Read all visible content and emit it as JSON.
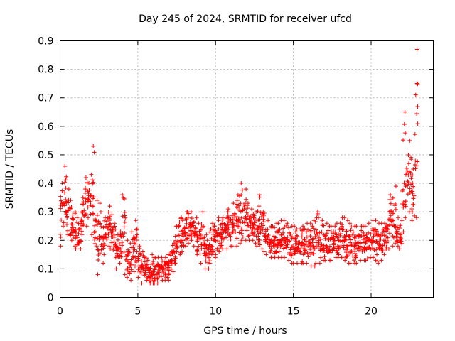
{
  "chart_data": {
    "type": "scatter",
    "title": "Day 245 of 2024, SRMTID for receiver ufcd",
    "xlabel": "GPS time / hours",
    "ylabel": "SRMTID / TECUs",
    "xlim": [
      0,
      24
    ],
    "ylim": [
      0,
      0.9
    ],
    "xticks": [
      0,
      5,
      10,
      15,
      20
    ],
    "xtick_labels": [
      "0",
      "5",
      "10",
      "15",
      "20"
    ],
    "yticks": [
      0,
      0.1,
      0.2,
      0.3,
      0.4,
      0.5,
      0.6,
      0.7,
      0.8,
      0.9
    ],
    "ytick_labels": [
      "0",
      "0.1",
      "0.2",
      "0.3",
      "0.4",
      "0.5",
      "0.6",
      "0.7",
      "0.8",
      "0.9"
    ],
    "grid": true,
    "marker": "+",
    "color": "#ff0000",
    "series": [
      {
        "name": "SRMTID",
        "x": [
          0.0,
          0.2,
          0.4,
          0.6,
          0.8,
          1.0,
          1.2,
          1.4,
          1.6,
          1.8,
          2.0,
          2.2,
          2.4,
          2.6,
          2.8,
          3.0,
          3.2,
          3.4,
          3.6,
          3.8,
          4.0,
          4.2,
          4.4,
          4.6,
          4.8,
          5.0,
          5.2,
          5.4,
          5.6,
          5.8,
          6.0,
          6.2,
          6.4,
          6.6,
          6.8,
          7.0,
          7.2,
          7.4,
          7.6,
          7.8,
          8.0,
          8.2,
          8.4,
          8.6,
          8.8,
          9.0,
          9.2,
          9.4,
          9.6,
          9.8,
          10.0,
          10.2,
          10.4,
          10.6,
          10.8,
          11.0,
          11.2,
          11.4,
          11.6,
          11.8,
          12.0,
          12.2,
          12.4,
          12.6,
          12.8,
          13.0,
          13.2,
          13.4,
          13.6,
          13.8,
          14.0,
          14.2,
          14.4,
          14.6,
          14.8,
          15.0,
          15.2,
          15.4,
          15.6,
          15.8,
          16.0,
          16.2,
          16.4,
          16.6,
          16.8,
          17.0,
          17.2,
          17.4,
          17.6,
          17.8,
          18.0,
          18.2,
          18.4,
          18.6,
          18.8,
          19.0,
          19.2,
          19.4,
          19.6,
          19.8,
          20.0,
          20.2,
          20.4,
          20.6,
          20.8,
          21.0,
          21.2,
          21.4,
          21.6,
          21.8,
          22.0,
          22.2,
          22.4,
          22.6,
          22.8
        ],
        "y_low": [
          0.18,
          0.25,
          0.22,
          0.2,
          0.18,
          0.17,
          0.17,
          0.22,
          0.25,
          0.28,
          0.22,
          0.18,
          0.08,
          0.12,
          0.15,
          0.18,
          0.17,
          0.14,
          0.1,
          0.12,
          0.08,
          0.07,
          0.06,
          0.09,
          0.11,
          0.07,
          0.05,
          0.06,
          0.05,
          0.05,
          0.05,
          0.05,
          0.06,
          0.06,
          0.06,
          0.08,
          0.09,
          0.12,
          0.15,
          0.16,
          0.18,
          0.19,
          0.2,
          0.18,
          0.15,
          0.12,
          0.1,
          0.1,
          0.12,
          0.14,
          0.15,
          0.16,
          0.17,
          0.17,
          0.18,
          0.18,
          0.18,
          0.19,
          0.2,
          0.2,
          0.2,
          0.2,
          0.19,
          0.18,
          0.17,
          0.16,
          0.15,
          0.14,
          0.14,
          0.14,
          0.14,
          0.14,
          0.14,
          0.13,
          0.12,
          0.12,
          0.12,
          0.12,
          0.12,
          0.12,
          0.11,
          0.11,
          0.12,
          0.12,
          0.13,
          0.13,
          0.13,
          0.13,
          0.14,
          0.14,
          0.14,
          0.13,
          0.12,
          0.12,
          0.12,
          0.12,
          0.13,
          0.13,
          0.13,
          0.14,
          0.14,
          0.13,
          0.12,
          0.13,
          0.15,
          0.17,
          0.18,
          0.19,
          0.18,
          0.17,
          0.23,
          0.28,
          0.3,
          0.27,
          0.28
        ],
        "y_high": [
          0.4,
          0.46,
          0.38,
          0.34,
          0.3,
          0.28,
          0.3,
          0.35,
          0.42,
          0.4,
          0.53,
          0.34,
          0.33,
          0.3,
          0.28,
          0.32,
          0.29,
          0.26,
          0.22,
          0.23,
          0.36,
          0.2,
          0.19,
          0.23,
          0.27,
          0.18,
          0.16,
          0.14,
          0.13,
          0.15,
          0.14,
          0.14,
          0.14,
          0.14,
          0.15,
          0.16,
          0.19,
          0.25,
          0.28,
          0.27,
          0.3,
          0.3,
          0.3,
          0.28,
          0.26,
          0.3,
          0.25,
          0.22,
          0.24,
          0.26,
          0.27,
          0.28,
          0.28,
          0.3,
          0.31,
          0.33,
          0.34,
          0.36,
          0.4,
          0.38,
          0.33,
          0.31,
          0.3,
          0.32,
          0.36,
          0.3,
          0.27,
          0.25,
          0.25,
          0.26,
          0.26,
          0.27,
          0.27,
          0.26,
          0.25,
          0.25,
          0.24,
          0.24,
          0.25,
          0.26,
          0.26,
          0.27,
          0.3,
          0.28,
          0.27,
          0.26,
          0.25,
          0.25,
          0.25,
          0.26,
          0.28,
          0.28,
          0.27,
          0.26,
          0.25,
          0.25,
          0.25,
          0.25,
          0.25,
          0.26,
          0.27,
          0.27,
          0.26,
          0.26,
          0.26,
          0.3,
          0.36,
          0.39,
          0.28,
          0.27,
          0.65,
          0.5,
          0.55,
          0.45,
          0.87
        ]
      }
    ]
  }
}
